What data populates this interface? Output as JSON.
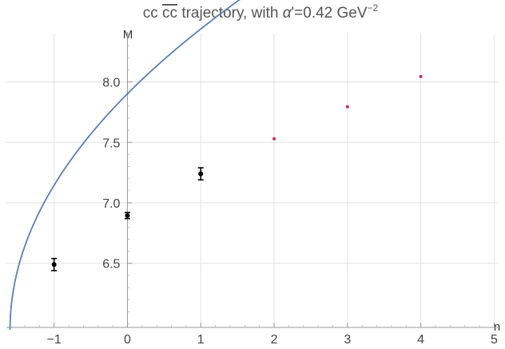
{
  "chart_data": {
    "type": "line",
    "title_parts": {
      "prefix": "cc ",
      "overline": "cc",
      "middle": " trajectory, with ",
      "alpha": "α",
      "value": "'=0.42 GeV",
      "exponent": "−2"
    },
    "xlabel": "n",
    "ylabel": "M",
    "xlim": [
      -1.65,
      5.05
    ],
    "ylim": [
      5.97,
      8.4
    ],
    "x_ticks": [
      -1,
      0,
      1,
      2,
      3,
      4,
      5
    ],
    "x_tick_labels": [
      "−1",
      "0",
      "1",
      "2",
      "3",
      "4",
      "5"
    ],
    "y_ticks": [
      6.5,
      7.0,
      7.5,
      8.0
    ],
    "y_tick_labels": [
      "6.5",
      "7.0",
      "7.5",
      "8.0"
    ],
    "grid": true,
    "series": [
      {
        "kind": "curve",
        "color": "#5b80b4",
        "formula_n0": -1.6,
        "alpha_prime": 0.42,
        "mass_offset": 5.95,
        "x_range": [
          -1.6,
          5.0
        ]
      },
      {
        "kind": "measured",
        "color": "#000000",
        "points": [
          {
            "x": -1,
            "y": 6.49,
            "err": 0.05
          },
          {
            "x": 0,
            "y": 6.895,
            "err": 0.025
          },
          {
            "x": 1,
            "y": 7.24,
            "err": 0.05
          }
        ]
      },
      {
        "kind": "predicted",
        "color": "#d6285a",
        "points": [
          {
            "x": 2,
            "y": 7.53
          },
          {
            "x": 3,
            "y": 7.795
          },
          {
            "x": 4,
            "y": 8.045
          }
        ]
      }
    ]
  }
}
